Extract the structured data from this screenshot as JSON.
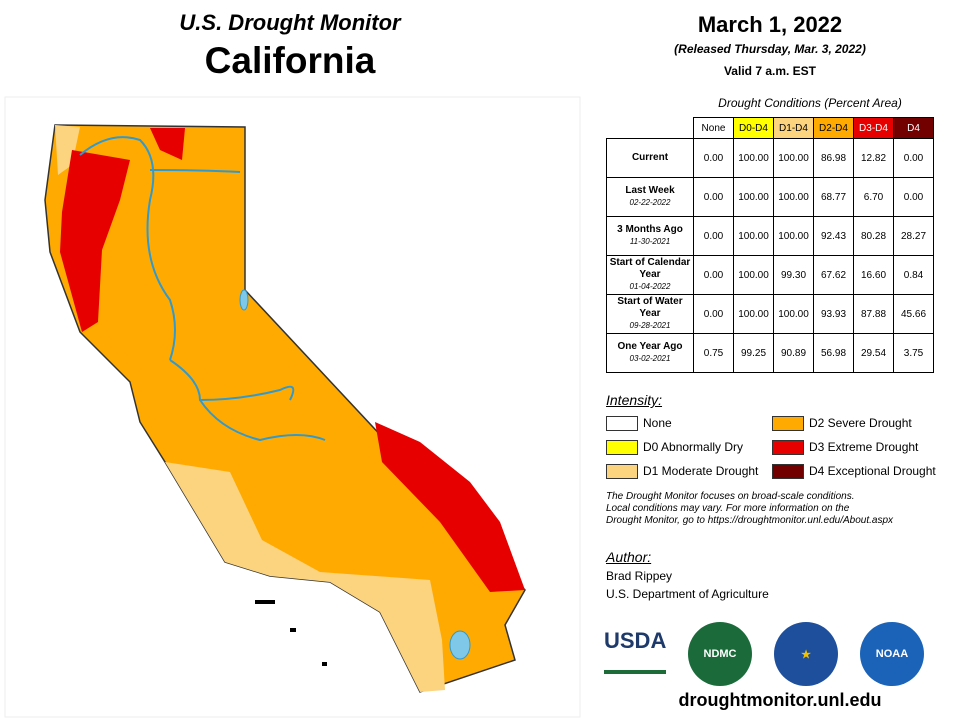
{
  "header": {
    "title": "U.S. Drought Monitor",
    "state": "California"
  },
  "release": {
    "date": "March 1, 2022",
    "released": "(Released Thursday, Mar. 3, 2022)",
    "valid": "Valid 7 a.m. EST"
  },
  "table": {
    "caption": "Drought Conditions (Percent Area)",
    "columns": [
      {
        "label": "None",
        "color": "#ffffff",
        "text_color": "#000000"
      },
      {
        "label": "D0-D4",
        "color": "#ffff00",
        "text_color": "#000000"
      },
      {
        "label": "D1-D4",
        "color": "#fcd37f",
        "text_color": "#000000"
      },
      {
        "label": "D2-D4",
        "color": "#ffaa00",
        "text_color": "#000000"
      },
      {
        "label": "D3-D4",
        "color": "#e60000",
        "text_color": "#ffffff"
      },
      {
        "label": "D4",
        "color": "#730000",
        "text_color": "#ffffff"
      }
    ],
    "rows": [
      {
        "label": "Current",
        "values": [
          "0.00",
          "100.00",
          "100.00",
          "86.98",
          "12.82",
          "0.00"
        ]
      },
      {
        "label": "Last Week",
        "date": "02-22-2022",
        "values": [
          "0.00",
          "100.00",
          "100.00",
          "68.77",
          "6.70",
          "0.00"
        ]
      },
      {
        "label": "3 Months Ago",
        "date": "11-30-2021",
        "values": [
          "0.00",
          "100.00",
          "100.00",
          "92.43",
          "80.28",
          "28.27"
        ]
      },
      {
        "label": "Start of Calendar Year",
        "date": "01-04-2022",
        "values": [
          "0.00",
          "100.00",
          "99.30",
          "67.62",
          "16.60",
          "0.84"
        ]
      },
      {
        "label": "Start of Water Year",
        "date": "09-28-2021",
        "values": [
          "0.00",
          "100.00",
          "100.00",
          "93.93",
          "87.88",
          "45.66"
        ]
      },
      {
        "label": "One Year Ago",
        "date": "03-02-2021",
        "values": [
          "0.75",
          "99.25",
          "90.89",
          "56.98",
          "29.54",
          "3.75"
        ]
      }
    ]
  },
  "legend": {
    "title": "Intensity:",
    "items": [
      {
        "label": "None",
        "color": "#ffffff"
      },
      {
        "label": "D0 Abnormally Dry",
        "color": "#ffff00"
      },
      {
        "label": "D1 Moderate Drought",
        "color": "#fcd37f"
      },
      {
        "label": "D2 Severe Drought",
        "color": "#ffaa00"
      },
      {
        "label": "D3 Extreme Drought",
        "color": "#e60000"
      },
      {
        "label": "D4 Exceptional Drought",
        "color": "#730000"
      }
    ]
  },
  "note": [
    "The Drought Monitor focuses on broad-scale conditions.",
    "Local conditions may vary. For more information on the",
    "Drought Monitor, go to https://droughtmonitor.unl.edu/About.aspx"
  ],
  "author": {
    "heading": "Author:",
    "name": "Brad Rippey",
    "org": "U.S. Department of Agriculture"
  },
  "logos": [
    "USDA",
    "NDMC",
    "NOAA"
  ],
  "website": "droughtmonitor.unl.edu"
}
